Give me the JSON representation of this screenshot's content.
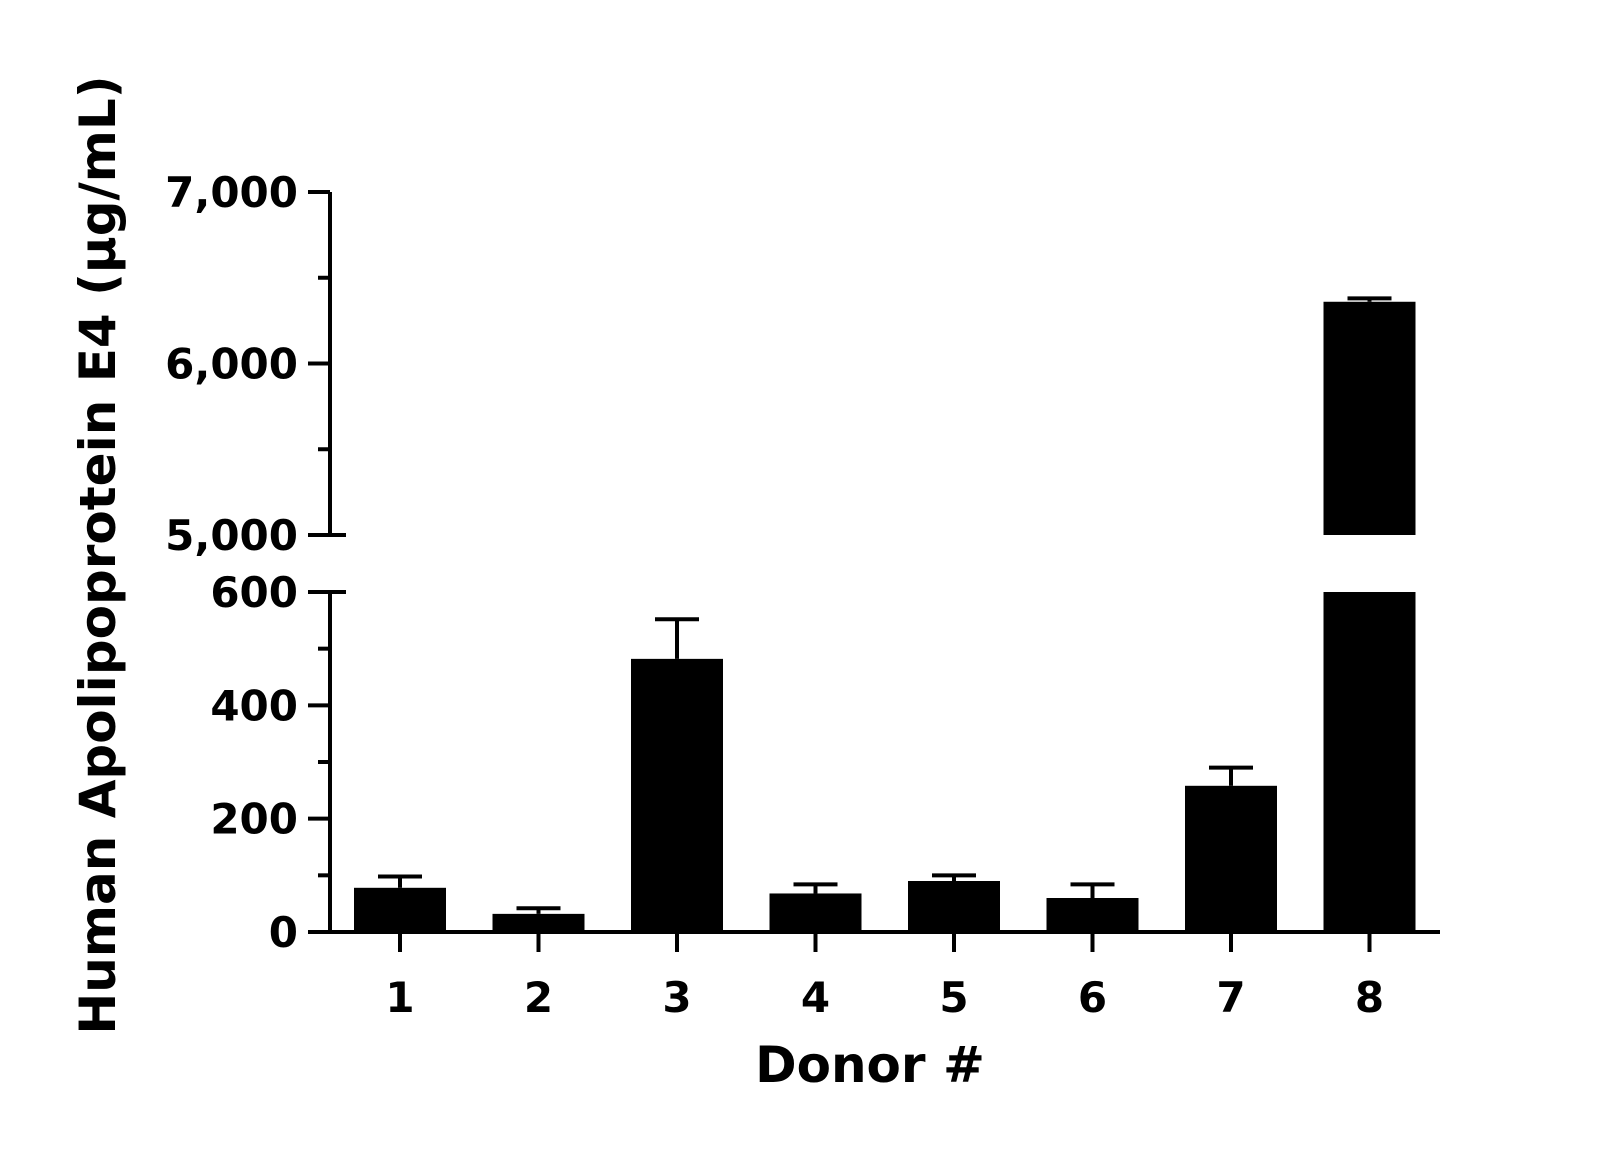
{
  "chart_data": {
    "type": "bar",
    "xlabel": "Donor #",
    "ylabel": "Human Apolipoprotein E4 (µg/mL)",
    "categories": [
      "1",
      "2",
      "3",
      "4",
      "5",
      "6",
      "7",
      "8"
    ],
    "values": [
      78,
      32,
      482,
      68,
      90,
      60,
      258,
      6360
    ],
    "errors": [
      20,
      10,
      70,
      16,
      10,
      24,
      32,
      20
    ],
    "y_axis_broken": true,
    "lower_segment": {
      "ylim": [
        0,
        600
      ],
      "ticks": [
        0,
        200,
        400,
        600
      ],
      "tick_labels": [
        "0",
        "200",
        "400",
        "600"
      ]
    },
    "upper_segment": {
      "ylim": [
        5000,
        7000
      ],
      "ticks": [
        5000,
        6000,
        7000
      ],
      "tick_labels": [
        "5,000",
        "6,000",
        "7,000"
      ]
    },
    "bar_color": "#000000",
    "grid": false,
    "legend": "none"
  }
}
